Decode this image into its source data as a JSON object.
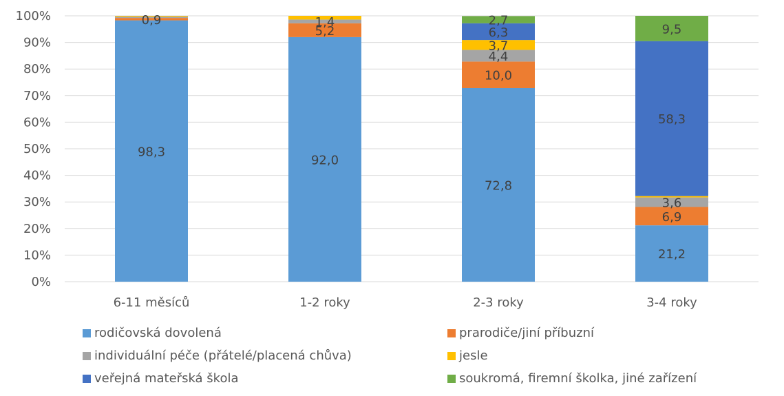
{
  "chart_data": {
    "type": "bar",
    "stacked": true,
    "percent": true,
    "categories": [
      "6-11 měsíců",
      "1-2 roky",
      "2-3 roky",
      "3-4 roky"
    ],
    "y_ticks": [
      "0%",
      "10%",
      "20%",
      "30%",
      "40%",
      "50%",
      "60%",
      "70%",
      "80%",
      "90%",
      "100%"
    ],
    "ylim": [
      0,
      100
    ],
    "grid": true,
    "legend_position": "bottom",
    "series": [
      {
        "name": "rodičovská dovolená",
        "color": "#5b9bd5",
        "values": [
          98.3,
          92.0,
          72.8,
          21.2
        ],
        "labels": [
          "98,3",
          "92,0",
          "72,8",
          "21,2"
        ]
      },
      {
        "name": "prarodiče/jiní příbuzní",
        "color": "#ed7d31",
        "values": [
          0.9,
          5.2,
          10.0,
          6.9
        ],
        "labels": [
          "0,9",
          "5,2",
          "10,0",
          "6,9"
        ]
      },
      {
        "name": "individuální péče (přátelé/placená chůva)",
        "color": "#a5a5a5",
        "values": [
          0.5,
          1.4,
          4.4,
          3.6
        ],
        "labels": [
          "",
          "1,4",
          "4,4",
          "3,6"
        ]
      },
      {
        "name": "jesle",
        "color": "#ffc000",
        "values": [
          0.3,
          1.4,
          3.7,
          0.5
        ],
        "labels": [
          "",
          "",
          "3,7",
          ""
        ]
      },
      {
        "name": "veřejná mateřská škola",
        "color": "#4472c4",
        "values": [
          0,
          0,
          6.3,
          58.3
        ],
        "labels": [
          "",
          "",
          "6,3",
          "58,3"
        ]
      },
      {
        "name": "soukromá, firemní školka, jiné zařízení",
        "color": "#70ad47",
        "values": [
          0,
          0,
          2.7,
          9.5
        ],
        "labels": [
          "",
          "",
          "2,7",
          "9,5"
        ]
      }
    ]
  }
}
